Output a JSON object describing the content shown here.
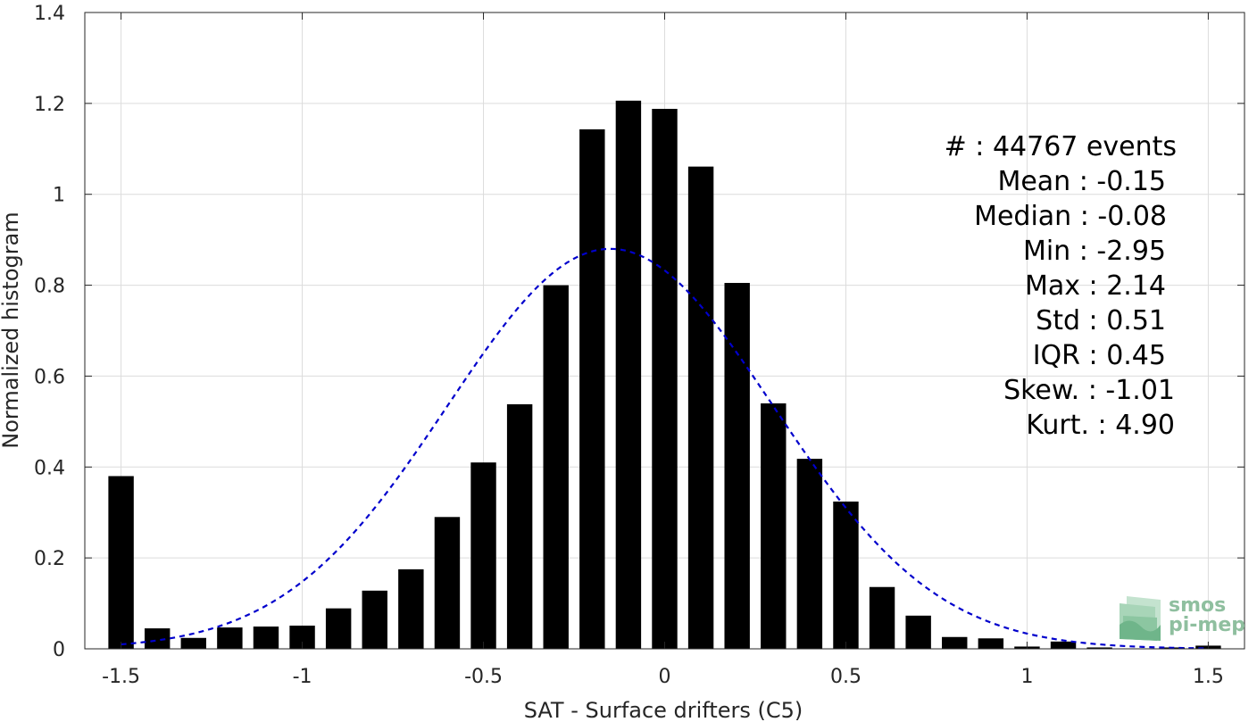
{
  "chart_data": {
    "type": "bar",
    "xlabel": "SAT - Surface drifters (C5)",
    "ylabel": "Normalized histogram",
    "xlim": [
      -1.6,
      1.6
    ],
    "ylim": [
      0,
      1.4
    ],
    "grid": true,
    "xticks": [
      -1.5,
      -1,
      -0.5,
      0,
      0.5,
      1,
      1.5
    ],
    "xtick_labels": [
      "-1.5",
      "-1",
      "-0.5",
      "0",
      "0.5",
      "1",
      "1.5"
    ],
    "yticks": [
      0,
      0.2,
      0.4,
      0.6,
      0.8,
      1,
      1.2,
      1.4
    ],
    "ytick_labels": [
      "0",
      "0.2",
      "0.4",
      "0.6",
      "0.8",
      "1",
      "1.2",
      "1.4"
    ],
    "bar_width": 0.07,
    "bar_color": "#000000",
    "bars": {
      "x": [
        -1.5,
        -1.4,
        -1.3,
        -1.2,
        -1.1,
        -1.0,
        -0.9,
        -0.8,
        -0.7,
        -0.6,
        -0.5,
        -0.4,
        -0.3,
        -0.2,
        -0.1,
        0.0,
        0.1,
        0.2,
        0.3,
        0.4,
        0.5,
        0.6,
        0.7,
        0.8,
        0.9,
        1.0,
        1.1,
        1.2,
        1.3,
        1.4,
        1.5
      ],
      "y": [
        0.38,
        0.045,
        0.024,
        0.047,
        0.049,
        0.051,
        0.089,
        0.128,
        0.175,
        0.29,
        0.41,
        0.538,
        0.8,
        1.143,
        1.206,
        1.188,
        1.061,
        0.805,
        0.54,
        0.418,
        0.324,
        0.136,
        0.073,
        0.026,
        0.023,
        0.005,
        0.016,
        0.003,
        0.001,
        0.003,
        0.007
      ]
    },
    "fit_curve": {
      "style": "dashed",
      "color": "#0000cc",
      "mean": -0.15,
      "std": 0.45,
      "peak": 0.88,
      "x_range": [
        -1.5,
        1.5
      ]
    },
    "stats": [
      {
        "label": "#  : 44767 events"
      },
      {
        "label": "Mean : -0.15"
      },
      {
        "label": "Median : -0.08"
      },
      {
        "label": "Min : -2.95"
      },
      {
        "label": "Max : 2.14"
      },
      {
        "label": "Std : 0.51"
      },
      {
        "label": "IQR : 0.45"
      },
      {
        "label": "Skew. : -1.01"
      },
      {
        "label": "Kurt. : 4.90"
      }
    ]
  },
  "logo": {
    "line1": "smos",
    "line2": "pi-mep",
    "color": "#8fbf9f"
  }
}
